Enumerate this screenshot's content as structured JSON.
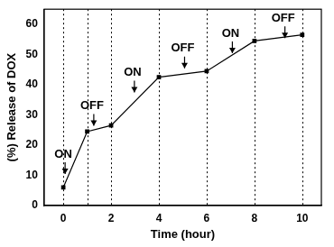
{
  "chart_data": {
    "type": "line",
    "x_label": "Time (hour)",
    "y_label": "(%) Release of DOX",
    "x": [
      0,
      1,
      2,
      4,
      6,
      8,
      10
    ],
    "values": [
      6,
      24.5,
      26.5,
      42.5,
      44.5,
      54.5,
      56.5
    ],
    "color": "#000000",
    "marker": "square",
    "line_style": "solid",
    "xlim": [
      -0.8,
      10.8
    ],
    "xticks": [
      0,
      2,
      4,
      6,
      8,
      10
    ],
    "ylim": [
      0,
      65
    ],
    "yticks": [
      0,
      10,
      20,
      30,
      40,
      50,
      60
    ],
    "grid": false,
    "vlines": [
      0,
      1,
      2,
      4,
      6,
      8,
      10
    ],
    "annotations": [
      {
        "text": "ON",
        "x": 0,
        "y": 17
      },
      {
        "text": "OFF",
        "x": 1.2,
        "y": 33
      },
      {
        "text": "ON",
        "x": 2.9,
        "y": 44
      },
      {
        "text": "OFF",
        "x": 5,
        "y": 52
      },
      {
        "text": "ON",
        "x": 7,
        "y": 57
      },
      {
        "text": "OFF",
        "x": 9.2,
        "y": 62
      }
    ]
  }
}
